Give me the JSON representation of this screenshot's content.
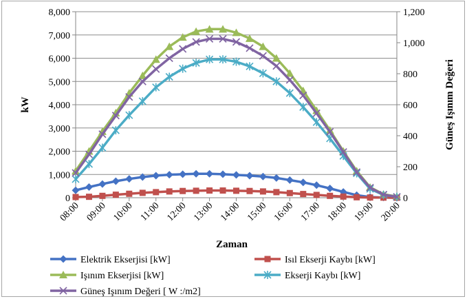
{
  "chart_data": {
    "type": "line",
    "xlabel": "Zaman",
    "ylabel": "kW",
    "y2label": "Güneş Işınım Değeri",
    "ylim": [
      0,
      8000
    ],
    "y2lim": [
      0,
      1200
    ],
    "ytick_labels": [
      "0",
      "1,000",
      "2,000",
      "3,000",
      "4,000",
      "5,000",
      "6,000",
      "7,000",
      "8,000"
    ],
    "y2tick_labels": [
      "0",
      "200",
      "400",
      "600",
      "800",
      "1,000",
      "1,200"
    ],
    "grid": "horizontal",
    "legend_position": "bottom",
    "x_tick_labels": [
      "08:00",
      "09:00",
      "10:00",
      "11:00",
      "12:00",
      "13:00",
      "14:00",
      "15:00",
      "16:00",
      "17:00",
      "18:00",
      "19:00",
      "20:00"
    ],
    "x": [
      "08:00",
      "08:30",
      "09:00",
      "09:30",
      "10:00",
      "10:30",
      "11:00",
      "11:30",
      "12:00",
      "12:30",
      "13:00",
      "13:30",
      "14:00",
      "14:30",
      "15:00",
      "15:30",
      "16:00",
      "16:30",
      "17:00",
      "17:30",
      "18:00",
      "18:30",
      "19:00",
      "19:30",
      "20:00"
    ],
    "series": [
      {
        "name": "Elektrik Ekserjisi [kW]",
        "axis": "left",
        "color": "#4472c4",
        "marker": "diamond",
        "values": [
          320,
          460,
          590,
          710,
          810,
          890,
          950,
          990,
          1010,
          1030,
          1030,
          1010,
          980,
          950,
          910,
          850,
          760,
          660,
          540,
          400,
          250,
          110,
          30,
          10,
          0
        ]
      },
      {
        "name": "Isıl Ekserji Kaybı [kW]",
        "axis": "left",
        "color": "#c0504d",
        "marker": "square",
        "values": [
          30,
          40,
          80,
          130,
          170,
          210,
          240,
          270,
          290,
          300,
          310,
          310,
          300,
          290,
          270,
          240,
          200,
          160,
          120,
          80,
          50,
          20,
          10,
          5,
          0
        ]
      },
      {
        "name": "Işınım Ekserjisi [kW]",
        "axis": "left",
        "color": "#9bbb59",
        "marker": "triangle",
        "values": [
          1150,
          2000,
          2850,
          3650,
          4500,
          5250,
          5950,
          6500,
          6900,
          7150,
          7250,
          7250,
          7100,
          6850,
          6500,
          6000,
          5350,
          4600,
          3750,
          2900,
          2000,
          1150,
          450,
          150,
          50
        ]
      },
      {
        "name": "Ekserji Kaybı [kW]",
        "axis": "left",
        "color": "#4bacc6",
        "marker": "star",
        "values": [
          800,
          1450,
          2150,
          2900,
          3550,
          4150,
          4750,
          5200,
          5550,
          5800,
          5950,
          5950,
          5850,
          5650,
          5350,
          5000,
          4500,
          3900,
          3250,
          2550,
          1800,
          1050,
          380,
          120,
          40
        ]
      },
      {
        "name": "Güneş Işınım Değeri [ W  :/m2]",
        "axis": "right",
        "color": "#8064a2",
        "marker": "x",
        "values": [
          160,
          280,
          410,
          530,
          650,
          750,
          830,
          900,
          960,
          1005,
          1025,
          1025,
          1005,
          965,
          915,
          850,
          760,
          660,
          545,
          425,
          295,
          165,
          65,
          20,
          5
        ]
      }
    ]
  }
}
